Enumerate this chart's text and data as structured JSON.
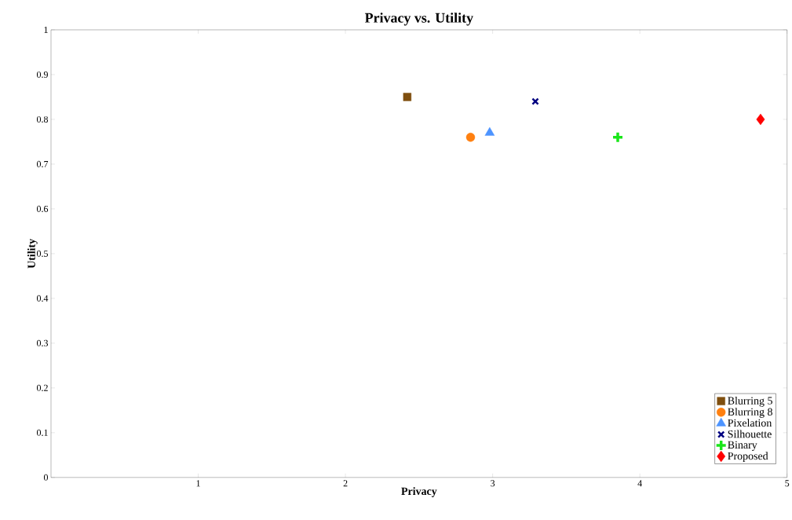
{
  "chart_data": {
    "type": "scatter",
    "title": "Privacy vs. Utility",
    "xlabel": "Privacy",
    "ylabel": "Utility",
    "xlim": [
      0,
      5
    ],
    "ylim": [
      0,
      1
    ],
    "xticks": [
      1,
      2,
      3,
      4,
      5
    ],
    "yticks": [
      0,
      0.1,
      0.2,
      0.3,
      0.4,
      0.5,
      0.6,
      0.7,
      0.8,
      0.9,
      1
    ],
    "grid": false,
    "legend": "bottom right",
    "series": [
      {
        "name": "Blurring 5",
        "color": "#7f4f0f",
        "marker": "square",
        "x": [
          2.42
        ],
        "values": [
          0.85
        ]
      },
      {
        "name": "Blurring 8",
        "color": "#ff8010",
        "marker": "circle",
        "x": [
          2.85
        ],
        "values": [
          0.76
        ]
      },
      {
        "name": "Pixelation",
        "color": "#4d94ff",
        "marker": "triangle",
        "x": [
          2.98
        ],
        "values": [
          0.77
        ]
      },
      {
        "name": "Silhouette",
        "color": "#000080",
        "marker": "x",
        "x": [
          3.29
        ],
        "values": [
          0.84
        ]
      },
      {
        "name": "Binary",
        "color": "#19e619",
        "marker": "cross",
        "x": [
          3.85
        ],
        "values": [
          0.76
        ]
      },
      {
        "name": "Proposed",
        "color": "#ff0000",
        "marker": "diamond",
        "x": [
          4.82
        ],
        "values": [
          0.8
        ]
      }
    ]
  }
}
